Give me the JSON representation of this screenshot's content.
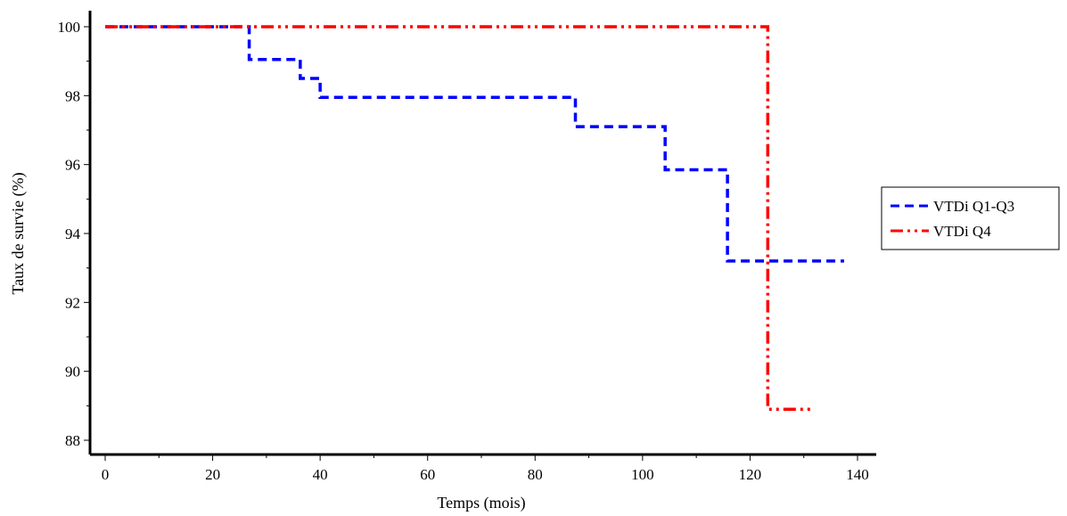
{
  "chart_data": {
    "type": "line",
    "title": "",
    "xlabel": "Temps (mois)",
    "ylabel": "Taux de survie (%)",
    "xlim": [
      0,
      140
    ],
    "ylim": [
      88,
      100
    ],
    "xticks": [
      0,
      20,
      40,
      60,
      80,
      100,
      120,
      140
    ],
    "yticks": [
      88,
      90,
      92,
      94,
      96,
      98,
      100
    ],
    "step": true,
    "grid": false,
    "legend_position": "right",
    "series": [
      {
        "name": "VTDi Q1-Q3",
        "color": "#0000ff",
        "dash": "dashed",
        "x": [
          0,
          26.8,
          36.3,
          40,
          87.5,
          104.2,
          115.8,
          137.5
        ],
        "y": [
          100,
          99.05,
          98.5,
          97.95,
          97.1,
          95.85,
          93.2,
          93.2
        ]
      },
      {
        "name": "VTDi Q4",
        "color": "#ff0000",
        "dash": "dash-dot-dot",
        "x": [
          0,
          123.3,
          131.5
        ],
        "y": [
          100,
          88.9,
          88.9
        ]
      }
    ]
  }
}
